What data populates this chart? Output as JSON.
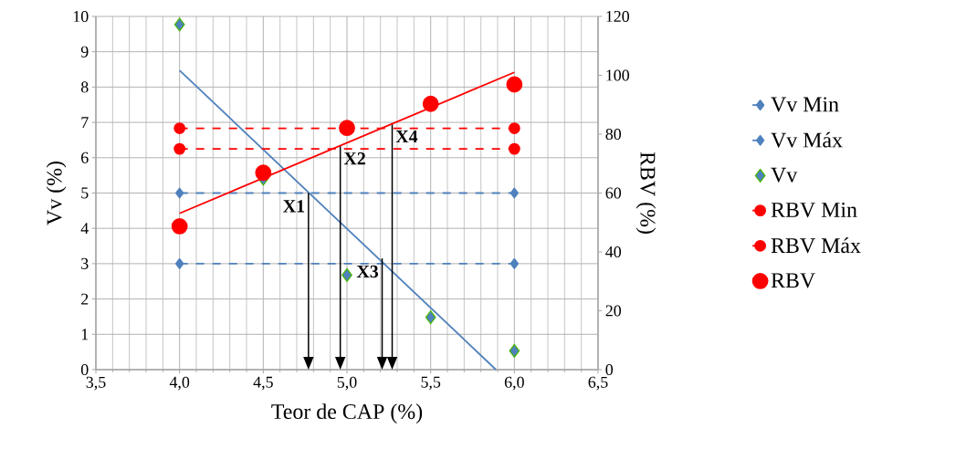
{
  "chart_data": {
    "type": "scatter",
    "xlabel": "Teor de CAP (%)",
    "ylabel": "Vv (%)",
    "y2label": "RBV (%)",
    "xlim": [
      3.5,
      6.5
    ],
    "xticks": [
      {
        "value": 3.5,
        "label": "3,5"
      },
      {
        "value": 4.0,
        "label": "4,0"
      },
      {
        "value": 4.5,
        "label": "4,5"
      },
      {
        "value": 5.0,
        "label": "5,0"
      },
      {
        "value": 5.5,
        "label": "5,5"
      },
      {
        "value": 6.0,
        "label": "6,0"
      },
      {
        "value": 6.5,
        "label": "6,5"
      }
    ],
    "ylim": [
      0,
      10
    ],
    "yticks": [
      0,
      1,
      2,
      3,
      4,
      5,
      6,
      7,
      8,
      9,
      10
    ],
    "y2lim": [
      0,
      120
    ],
    "y2ticks": [
      0,
      20,
      40,
      60,
      80,
      100,
      120
    ],
    "grid": true,
    "legend": "right",
    "series": [
      {
        "name": "Vv Min",
        "type": "line",
        "color": "#4f81bd",
        "marker": "diamond",
        "line_style": "dashed",
        "x": [
          4,
          6
        ],
        "values": [
          3,
          3
        ]
      },
      {
        "name": "Vv Máx",
        "type": "line",
        "color": "#4f81bd",
        "marker": "diamond",
        "line_style": "dashed",
        "x": [
          4,
          6
        ],
        "values": [
          5,
          5
        ]
      },
      {
        "name": "Vv",
        "color": "#4f81bd",
        "marker": "diamond",
        "x": [
          4,
          4.5,
          5,
          5.5,
          6
        ],
        "values": [
          9.77,
          5.4,
          2.68,
          1.48,
          0.53
        ]
      },
      {
        "type": "line",
        "color": "#4f81bd",
        "marker": "none",
        "line_style": "solid",
        "x": [
          4,
          5.89
        ],
        "values": [
          8.47,
          0
        ]
      },
      {
        "name": "RBV Min",
        "type": "line",
        "color": "#ff0000",
        "marker": "circle",
        "line_style": "dashed",
        "axis": "y2",
        "x": [
          4,
          6
        ],
        "values": [
          75,
          75
        ]
      },
      {
        "name": "RBV Máx",
        "type": "line",
        "color": "#ff0000",
        "marker": "circle",
        "line_style": "dashed",
        "axis": "y2",
        "x": [
          4,
          6
        ],
        "values": [
          82,
          82
        ]
      },
      {
        "name": "RBV",
        "color": "#ff0000",
        "marker": "circle",
        "axis": "y2",
        "x": [
          4,
          4.5,
          5,
          5.5,
          6
        ],
        "values": [
          48.7,
          66.9,
          82.1,
          90.3,
          96.9
        ]
      },
      {
        "type": "line",
        "color": "#ff0000",
        "marker": "none",
        "line_style": "solid",
        "axis": "y2",
        "x": [
          4,
          6
        ],
        "values": [
          53.1,
          101
        ]
      }
    ],
    "annotations": [
      {
        "text": "X1",
        "x": 4.77,
        "y": 5
      },
      {
        "text": "X2",
        "x": 4.96,
        "y": 6.35
      },
      {
        "text": "X3",
        "x": 5.21,
        "y": 3.15
      },
      {
        "text": "X4",
        "x": 5.27,
        "y": 6.97
      }
    ]
  }
}
